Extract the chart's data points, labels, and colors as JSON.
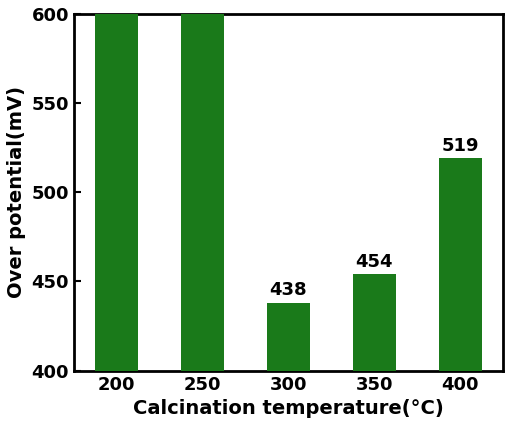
{
  "categories": [
    "200",
    "250",
    "300",
    "350",
    "400"
  ],
  "values": [
    600,
    600,
    438,
    454,
    519
  ],
  "bar_color": "#1a7a1a",
  "xlabel": "Calcination temperature(°C)",
  "ylabel": "Over potential(mV)",
  "ylim": [
    400,
    600
  ],
  "yticks": [
    400,
    450,
    500,
    550,
    600
  ],
  "bar_width": 0.5,
  "label_fontsize": 14,
  "tick_fontsize": 13,
  "annotation_fontsize": 13,
  "show_annotations": [
    false,
    false,
    true,
    true,
    true
  ],
  "annotation_values": [
    "438",
    "454",
    "519"
  ]
}
